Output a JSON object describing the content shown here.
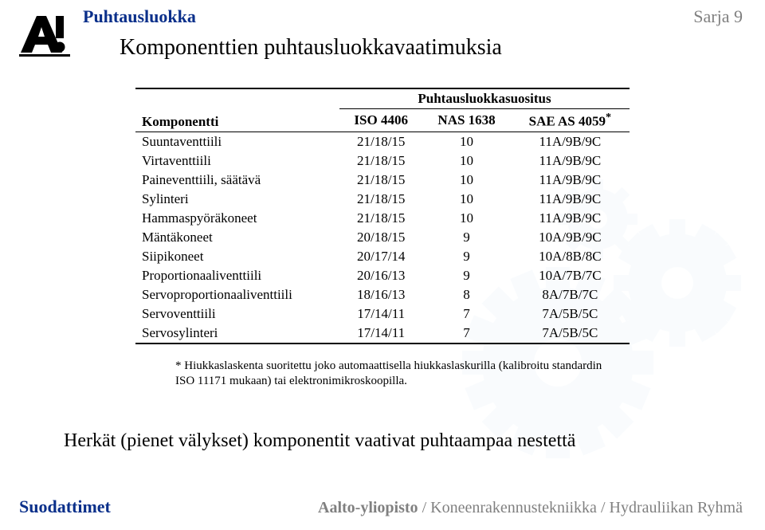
{
  "header": {
    "left": "Puhtausluokka",
    "right": "Sarja 9",
    "title": "Komponenttien puhtausluokkavaatimuksia"
  },
  "table": {
    "col0": "Komponentti",
    "super_header": "Puhtausluokkasuositus",
    "subcols": [
      "ISO 4406",
      "NAS 1638",
      "SAE AS 4059"
    ],
    "star": "*",
    "rows": [
      {
        "name": "Suuntaventtiili",
        "iso": "21/18/15",
        "nas": "10",
        "sae": "11A/9B/9C"
      },
      {
        "name": "Virtaventtiili",
        "iso": "21/18/15",
        "nas": "10",
        "sae": "11A/9B/9C"
      },
      {
        "name": "Paineventtiili, säätävä",
        "iso": "21/18/15",
        "nas": "10",
        "sae": "11A/9B/9C"
      },
      {
        "name": "Sylinteri",
        "iso": "21/18/15",
        "nas": "10",
        "sae": "11A/9B/9C"
      },
      {
        "name": "Hammaspyöräkoneet",
        "iso": "21/18/15",
        "nas": "10",
        "sae": "11A/9B/9C"
      },
      {
        "name": "Mäntäkoneet",
        "iso": "20/18/15",
        "nas": "9",
        "sae": "10A/9B/9C"
      },
      {
        "name": "Siipikoneet",
        "iso": "20/17/14",
        "nas": "9",
        "sae": "10A/8B/8C"
      },
      {
        "name": "Proportionaaliventtiili",
        "iso": "20/16/13",
        "nas": "9",
        "sae": "10A/7B/7C"
      },
      {
        "name": "Servoproportionaaliventtiili",
        "iso": "18/16/13",
        "nas": "8",
        "sae": "8A/7B/7C"
      },
      {
        "name": "Servoventtiili",
        "iso": "17/14/11",
        "nas": "7",
        "sae": "7A/5B/5C"
      },
      {
        "name": "Servosylinteri",
        "iso": "17/14/11",
        "nas": "7",
        "sae": "7A/5B/5C"
      }
    ]
  },
  "footnote": "* Hiukkaslaskenta suoritettu joko automaattisella hiukkaslaskurilla (kalibroitu standardin ISO 11171 mukaan) tai elektronimikroskoopilla.",
  "conclusion": "Herkät (pienet välykset) komponentit vaativat puhtaampaa nestettä",
  "footer": {
    "left": "Suodattimet",
    "right_strong": "Aalto-yliopisto",
    "right_rest": " / Koneenrakennustekniikka / Hydrauliikan Ryhmä"
  },
  "colors": {
    "header_blue": "#0a2f8a",
    "gray": "#808080",
    "gear_fill": "#d8ebf5",
    "text": "#000000",
    "bg": "#ffffff"
  }
}
